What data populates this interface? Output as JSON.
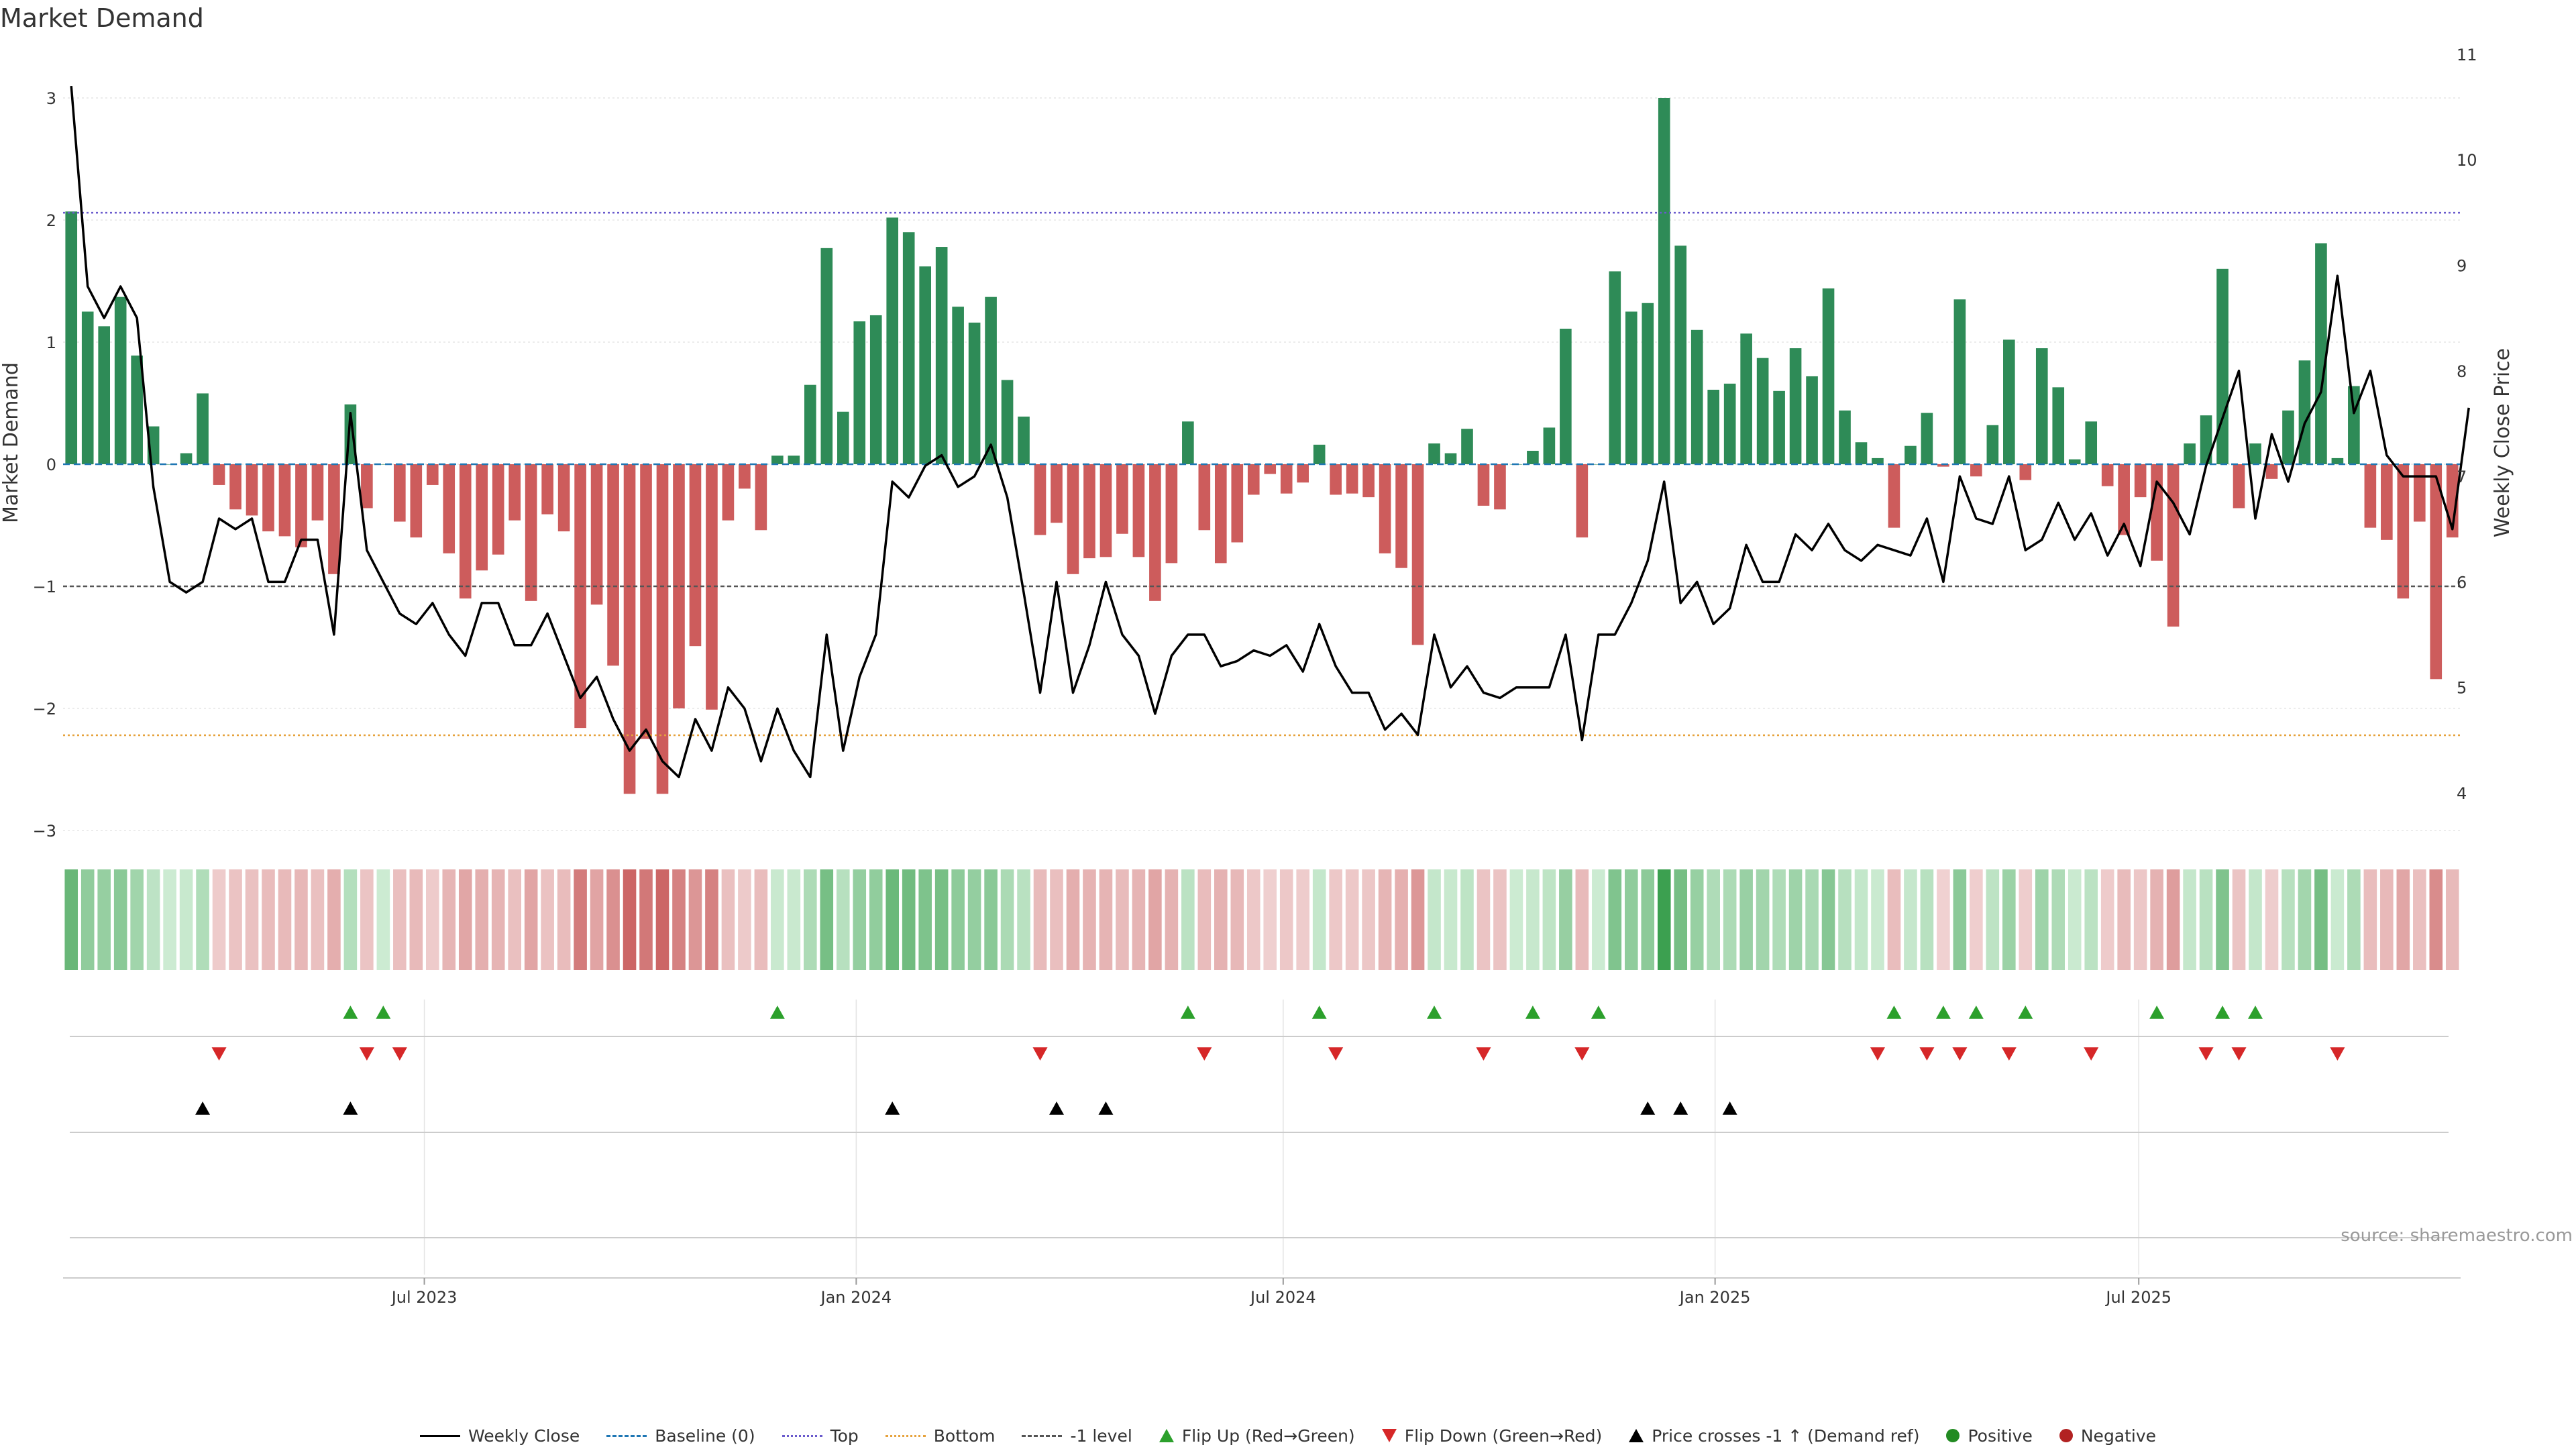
{
  "chart_data": {
    "type": "bar",
    "title": "Market Demand",
    "ylabel": "Market Demand",
    "y2label": "Weekly Close Price",
    "ylim": [
      -3.3,
      3.3
    ],
    "y2lim": [
      3.4,
      11.5
    ],
    "yticks": [
      "3",
      "2",
      "1",
      "0",
      "−1",
      "−2",
      "−3"
    ],
    "yticks_values": [
      3,
      2,
      1,
      0,
      -1,
      -2,
      -3
    ],
    "y2ticks": [
      "11",
      "10",
      "9",
      "8",
      "7",
      "6",
      "5",
      "4"
    ],
    "y2ticks_values": [
      11,
      10,
      9,
      8,
      7,
      6,
      5,
      4
    ],
    "xticks": [
      "Jul 2023",
      "Jan 2024",
      "Jul 2024",
      "Jan 2025",
      "Jul 2025"
    ],
    "xticks_index": [
      22,
      48.3,
      74.3,
      100.6,
      126.4
    ],
    "reference_lines": {
      "top": 2.06,
      "bottom": -2.22,
      "minus_one": -1.0,
      "baseline": 0
    },
    "demand": [
      2.07,
      1.25,
      1.13,
      1.37,
      0.89,
      0.31,
      0,
      0.09,
      0.58,
      -0.17,
      -0.37,
      -0.42,
      -0.55,
      -0.59,
      -0.68,
      -0.46,
      -0.9,
      0.49,
      -0.36,
      0,
      -0.47,
      -0.6,
      -0.17,
      -0.73,
      -1.1,
      -0.87,
      -0.74,
      -0.46,
      -1.12,
      -0.41,
      -0.55,
      -2.16,
      -1.15,
      -1.65,
      -2.7,
      -2.25,
      -2.7,
      -2.0,
      -1.49,
      -2.01,
      -0.46,
      -0.2,
      -0.54,
      0.07,
      0.07,
      0.65,
      1.77,
      0.43,
      1.17,
      1.22,
      2.02,
      1.9,
      1.62,
      1.78,
      1.29,
      1.16,
      1.37,
      0.69,
      0.39,
      -0.58,
      -0.48,
      -0.9,
      -0.77,
      -0.76,
      -0.57,
      -0.76,
      -1.12,
      -0.81,
      0.35,
      -0.54,
      -0.81,
      -0.64,
      -0.25,
      -0.08,
      -0.24,
      -0.15,
      0.16,
      -0.25,
      -0.24,
      -0.27,
      -0.73,
      -0.85,
      -1.48,
      0.17,
      0.09,
      0.29,
      -0.34,
      -0.37,
      0,
      0.11,
      0.3,
      1.11,
      -0.6,
      0,
      1.58,
      1.25,
      1.32,
      3.0,
      1.79,
      1.1,
      0.61,
      0.66,
      1.07,
      0.87,
      0.6,
      0.95,
      0.72,
      1.44,
      0.44,
      0.18,
      0.05,
      -0.52,
      0.15,
      0.42,
      -0.02,
      1.35,
      -0.1,
      0.32,
      1.02,
      -0.13,
      0.95,
      0.63,
      0.04,
      0.35,
      -0.18,
      -0.58,
      -0.27,
      -0.79,
      -1.33,
      0.17,
      0.4,
      1.6,
      -0.36,
      0.17,
      -0.12,
      0.44,
      0.85,
      1.81,
      0.05,
      0.64,
      -0.52,
      -0.62,
      -1.1,
      -0.47,
      -1.76,
      -0.6
    ],
    "price": [
      10.7,
      8.8,
      8.5,
      8.8,
      8.5,
      6.9,
      6.0,
      5.9,
      6.0,
      6.6,
      6.5,
      6.6,
      6.0,
      6.0,
      6.4,
      6.4,
      5.5,
      7.6,
      6.3,
      6.0,
      5.7,
      5.6,
      5.8,
      5.5,
      5.3,
      5.8,
      5.8,
      5.4,
      5.4,
      5.7,
      5.3,
      4.9,
      5.1,
      4.7,
      4.4,
      4.6,
      4.3,
      4.15,
      4.7,
      4.4,
      5.0,
      4.8,
      4.3,
      4.8,
      4.4,
      4.15,
      5.5,
      4.4,
      5.1,
      5.5,
      6.95,
      6.8,
      7.1,
      7.2,
      6.9,
      7.0,
      7.3,
      6.8,
      5.9,
      4.95,
      6.0,
      4.95,
      5.4,
      6.0,
      5.5,
      5.3,
      4.75,
      5.3,
      5.5,
      5.5,
      5.2,
      5.25,
      5.35,
      5.3,
      5.4,
      5.15,
      5.6,
      5.2,
      4.95,
      4.95,
      4.6,
      4.75,
      4.55,
      5.5,
      5.0,
      5.2,
      4.95,
      4.9,
      5.0,
      5.0,
      5.0,
      5.5,
      4.5,
      5.5,
      5.5,
      5.8,
      6.2,
      6.95,
      5.8,
      6.0,
      5.6,
      5.75,
      6.35,
      6.0,
      6.0,
      6.45,
      6.3,
      6.55,
      6.3,
      6.2,
      6.35,
      6.3,
      6.25,
      6.6,
      6.0,
      7.0,
      6.6,
      6.55,
      7.0,
      6.3,
      6.4,
      6.75,
      6.4,
      6.65,
      6.25,
      6.55,
      6.15,
      6.95,
      6.75,
      6.45,
      7.1,
      7.55,
      8.0,
      6.6,
      7.4,
      6.95,
      7.5,
      7.8,
      8.9,
      7.6,
      8.0,
      7.2,
      7.0,
      7.0,
      7.0,
      6.5,
      7.65
    ],
    "flip_up_index": [
      17,
      19,
      43,
      68,
      76,
      83,
      89,
      93,
      111,
      114,
      116,
      119,
      127,
      131,
      133
    ],
    "flip_down_index": [
      9,
      18,
      20,
      59,
      69,
      77,
      86,
      92,
      110,
      113,
      115,
      118,
      123,
      130,
      132,
      138
    ],
    "price_cross_index": [
      8,
      17,
      50,
      60,
      63,
      96,
      98,
      101
    ],
    "legend": [
      "Weekly Close",
      "Baseline (0)",
      "Top",
      "Bottom",
      "-1 level",
      "Flip Up (Red→Green)",
      "Flip Down (Green→Red)",
      "Price crosses -1 ↑ (Demand ref)",
      "Positive",
      "Negative"
    ],
    "source": "source: sharemaestro.com"
  },
  "colors": {
    "positive": "#2e8b57",
    "negative": "#cd5c5c",
    "price": "#000000",
    "baseline": "#1f77b4",
    "top": "#6a5acd",
    "bottom": "#e6a23c",
    "minus_one": "#555555",
    "flip_up": "#2ca02c",
    "flip_down": "#d62728",
    "cross": "#000000",
    "positive_dot": "#228b22",
    "negative_dot": "#b22222"
  }
}
